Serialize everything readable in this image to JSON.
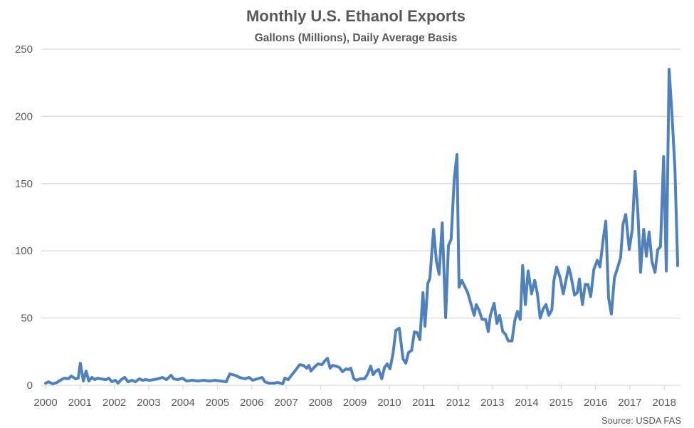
{
  "chart_data": {
    "type": "line",
    "title": "Monthly U.S. Ethanol Exports",
    "subtitle": "Gallons (Millions), Daily Average Basis",
    "xlabel": "",
    "ylabel": "",
    "source": "Source: USDA FAS",
    "xlim": [
      2000,
      2018.43
    ],
    "ylim": [
      0,
      250
    ],
    "yticks": [
      0,
      50,
      100,
      150,
      200,
      250
    ],
    "xticks": [
      "2000",
      "2001",
      "2002",
      "2003",
      "2004",
      "2005",
      "2006",
      "2007",
      "2008",
      "2009",
      "2010",
      "2011",
      "2012",
      "2013",
      "2014",
      "2015",
      "2016",
      "2017",
      "2018"
    ],
    "grid": true,
    "legend": "none",
    "color": "#4F81BD",
    "series": [
      {
        "name": "Monthly U.S. Ethanol Exports",
        "points": [
          [
            2000.0,
            1.5
          ],
          [
            2000.08,
            2.6
          ],
          [
            2000.21,
            1.1
          ],
          [
            2000.33,
            2
          ],
          [
            2000.46,
            4.2
          ],
          [
            2000.54,
            5.3
          ],
          [
            2000.66,
            4.8
          ],
          [
            2000.75,
            6.9
          ],
          [
            2000.87,
            4.8
          ],
          [
            2000.95,
            5.3
          ],
          [
            2001.01,
            16.4
          ],
          [
            2001.1,
            3.2
          ],
          [
            2001.18,
            10.6
          ],
          [
            2001.26,
            3.2
          ],
          [
            2001.35,
            5.8
          ],
          [
            2001.43,
            4.2
          ],
          [
            2001.51,
            5.3
          ],
          [
            2001.59,
            4.8
          ],
          [
            2001.76,
            4.2
          ],
          [
            2001.84,
            5.3
          ],
          [
            2001.93,
            2.6
          ],
          [
            2002.03,
            3.7
          ],
          [
            2002.11,
            1.6
          ],
          [
            2002.2,
            4.2
          ],
          [
            2002.3,
            5.8
          ],
          [
            2002.4,
            2.6
          ],
          [
            2002.51,
            3.7
          ],
          [
            2002.61,
            2.6
          ],
          [
            2002.73,
            4.8
          ],
          [
            2002.82,
            3.7
          ],
          [
            2002.92,
            4.2
          ],
          [
            2003.02,
            3.7
          ],
          [
            2003.15,
            4.2
          ],
          [
            2003.27,
            4.8
          ],
          [
            2003.4,
            5.8
          ],
          [
            2003.52,
            4.2
          ],
          [
            2003.65,
            7.4
          ],
          [
            2003.73,
            4.8
          ],
          [
            2003.85,
            4.2
          ],
          [
            2003.98,
            5.3
          ],
          [
            2004.1,
            3.2
          ],
          [
            2004.27,
            3.7
          ],
          [
            2004.43,
            3.2
          ],
          [
            2004.6,
            3.7
          ],
          [
            2004.76,
            3.2
          ],
          [
            2004.93,
            3.7
          ],
          [
            2005.09,
            3.2
          ],
          [
            2005.26,
            2.6
          ],
          [
            2005.36,
            8.5
          ],
          [
            2005.51,
            7.4
          ],
          [
            2005.65,
            5.8
          ],
          [
            2005.8,
            4.8
          ],
          [
            2005.92,
            5.8
          ],
          [
            2006.03,
            3.7
          ],
          [
            2006.17,
            4.8
          ],
          [
            2006.3,
            5.8
          ],
          [
            2006.38,
            2.6
          ],
          [
            2006.5,
            1.6
          ],
          [
            2006.65,
            1.6
          ],
          [
            2006.75,
            2.1
          ],
          [
            2006.9,
            1.1
          ],
          [
            2006.96,
            5.3
          ],
          [
            2007.06,
            4.2
          ],
          [
            2007.17,
            7.9
          ],
          [
            2007.27,
            11.1
          ],
          [
            2007.39,
            15.3
          ],
          [
            2007.5,
            14.8
          ],
          [
            2007.6,
            12.7
          ],
          [
            2007.66,
            14.8
          ],
          [
            2007.72,
            10.6
          ],
          [
            2007.85,
            14.3
          ],
          [
            2007.93,
            15.9
          ],
          [
            2008.04,
            15.3
          ],
          [
            2008.12,
            18
          ],
          [
            2008.2,
            20.1
          ],
          [
            2008.28,
            12.7
          ],
          [
            2008.35,
            14.8
          ],
          [
            2008.45,
            14.3
          ],
          [
            2008.55,
            13.2
          ],
          [
            2008.64,
            10.1
          ],
          [
            2008.74,
            12.2
          ],
          [
            2008.82,
            11.7
          ],
          [
            2008.88,
            12.7
          ],
          [
            2008.97,
            4.8
          ],
          [
            2009.05,
            3.7
          ],
          [
            2009.15,
            4.8
          ],
          [
            2009.28,
            4.8
          ],
          [
            2009.36,
            7.9
          ],
          [
            2009.46,
            14.3
          ],
          [
            2009.53,
            7.9
          ],
          [
            2009.61,
            10.6
          ],
          [
            2009.69,
            11.7
          ],
          [
            2009.78,
            4.8
          ],
          [
            2009.86,
            13.2
          ],
          [
            2009.94,
            15.9
          ],
          [
            2010.02,
            12.2
          ],
          [
            2010.11,
            23.8
          ],
          [
            2010.19,
            40.8
          ],
          [
            2010.29,
            42.4
          ],
          [
            2010.4,
            19.6
          ],
          [
            2010.48,
            16.4
          ],
          [
            2010.56,
            24.4
          ],
          [
            2010.65,
            25.9
          ],
          [
            2010.73,
            39.7
          ],
          [
            2010.81,
            39.2
          ],
          [
            2010.89,
            33.9
          ],
          [
            2010.98,
            68.9
          ],
          [
            2011.04,
            43.9
          ],
          [
            2011.12,
            75.7
          ],
          [
            2011.18,
            79.4
          ],
          [
            2011.29,
            116
          ],
          [
            2011.37,
            92.2
          ],
          [
            2011.45,
            82.6
          ],
          [
            2011.54,
            120.8
          ],
          [
            2011.64,
            50.3
          ],
          [
            2011.72,
            103.8
          ],
          [
            2011.8,
            108.6
          ],
          [
            2011.89,
            153.6
          ],
          [
            2011.97,
            171.6
          ],
          [
            2012.03,
            73
          ],
          [
            2012.11,
            78
          ],
          [
            2012.28,
            69
          ],
          [
            2012.47,
            52
          ],
          [
            2012.53,
            60
          ],
          [
            2012.61,
            56
          ],
          [
            2012.7,
            49
          ],
          [
            2012.8,
            49
          ],
          [
            2012.88,
            40
          ],
          [
            2012.94,
            52
          ],
          [
            2013.05,
            61
          ],
          [
            2013.13,
            46
          ],
          [
            2013.21,
            52
          ],
          [
            2013.3,
            40
          ],
          [
            2013.38,
            38
          ],
          [
            2013.46,
            33
          ],
          [
            2013.57,
            33
          ],
          [
            2013.65,
            48
          ],
          [
            2013.73,
            55
          ],
          [
            2013.81,
            49
          ],
          [
            2013.88,
            89
          ],
          [
            2013.96,
            60
          ],
          [
            2014.04,
            85
          ],
          [
            2014.14,
            68
          ],
          [
            2014.23,
            78
          ],
          [
            2014.31,
            68
          ],
          [
            2014.39,
            50
          ],
          [
            2014.48,
            57
          ],
          [
            2014.56,
            60
          ],
          [
            2014.64,
            52
          ],
          [
            2014.73,
            56
          ],
          [
            2014.79,
            78
          ],
          [
            2014.87,
            88
          ],
          [
            2014.97,
            80
          ],
          [
            2015.06,
            68
          ],
          [
            2015.14,
            78
          ],
          [
            2015.22,
            88
          ],
          [
            2015.28,
            82
          ],
          [
            2015.39,
            67
          ],
          [
            2015.47,
            69
          ],
          [
            2015.53,
            79
          ],
          [
            2015.62,
            60
          ],
          [
            2015.7,
            75
          ],
          [
            2015.78,
            75
          ],
          [
            2015.86,
            66
          ],
          [
            2015.95,
            86
          ],
          [
            2016.05,
            93
          ],
          [
            2016.13,
            88
          ],
          [
            2016.22,
            108
          ],
          [
            2016.3,
            122
          ],
          [
            2016.38,
            65
          ],
          [
            2016.46,
            53
          ],
          [
            2016.55,
            80
          ],
          [
            2016.65,
            88
          ],
          [
            2016.73,
            95
          ],
          [
            2016.8,
            120
          ],
          [
            2016.88,
            127
          ],
          [
            2016.98,
            101
          ],
          [
            2017.07,
            116
          ],
          [
            2017.15,
            159
          ],
          [
            2017.23,
            129
          ],
          [
            2017.31,
            84
          ],
          [
            2017.4,
            116
          ],
          [
            2017.48,
            96
          ],
          [
            2017.56,
            114
          ],
          [
            2017.64,
            92
          ],
          [
            2017.73,
            84
          ],
          [
            2017.81,
            101
          ],
          [
            2017.89,
            103
          ],
          [
            2017.98,
            170
          ],
          [
            2018.06,
            85
          ],
          [
            2018.14,
            235
          ],
          [
            2018.22,
            203
          ],
          [
            2018.31,
            161
          ],
          [
            2018.39,
            89
          ]
        ]
      }
    ]
  }
}
